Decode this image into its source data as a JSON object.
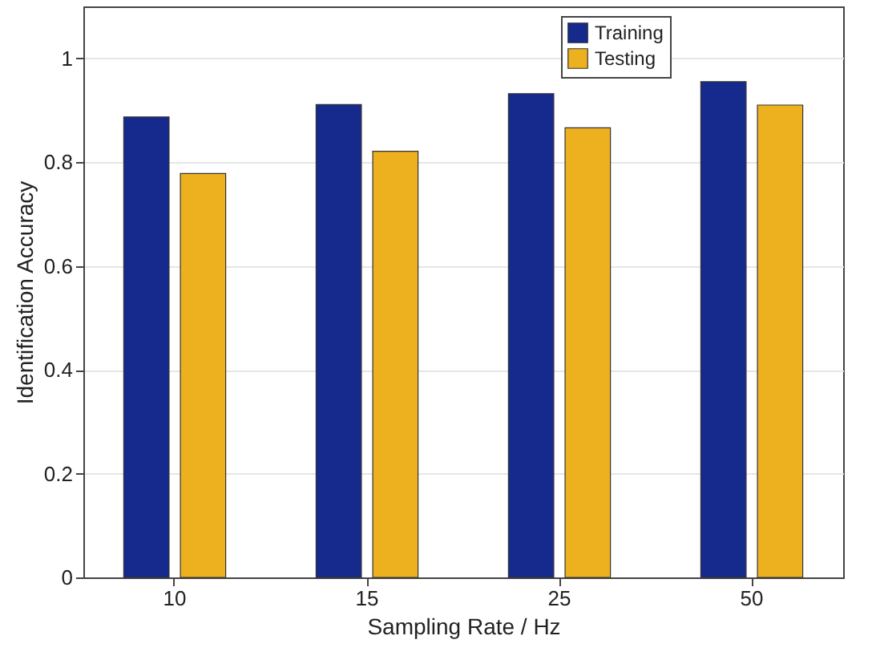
{
  "chart_data": {
    "type": "bar",
    "xlabel": "Sampling Rate / Hz",
    "ylabel": "Identification Accuracy",
    "categories": [
      "10",
      "15",
      "25",
      "50"
    ],
    "series": [
      {
        "name": "Training",
        "color": "#152a8c",
        "values": [
          0.887,
          0.911,
          0.932,
          0.955
        ]
      },
      {
        "name": "Testing",
        "color": "#edb120",
        "values": [
          0.778,
          0.821,
          0.866,
          0.91
        ]
      }
    ],
    "ylim": [
      0,
      1.1
    ],
    "yticks": [
      0,
      0.2,
      0.4,
      0.6,
      0.8,
      1
    ],
    "grid": "y",
    "legend": "top right"
  }
}
